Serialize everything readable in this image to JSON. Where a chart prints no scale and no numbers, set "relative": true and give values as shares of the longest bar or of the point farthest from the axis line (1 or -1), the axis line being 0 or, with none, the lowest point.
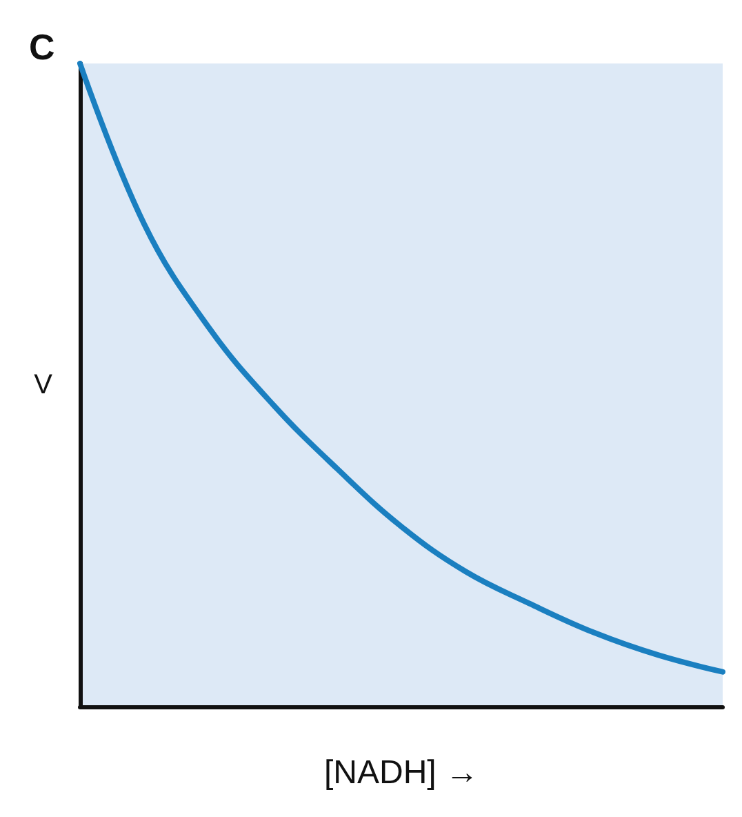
{
  "chart_data": {
    "type": "line",
    "title": "C",
    "xlabel": "[NADH] →",
    "ylabel": "V",
    "relative": true,
    "categories": [
      null,
      null,
      null,
      null,
      null,
      null,
      null,
      null,
      null,
      null,
      null
    ],
    "series": [
      {
        "color": "#1a7fc0",
        "values": [
          1,
          0.75,
          0.59,
          0.47,
          0.37,
          0.28,
          0.21,
          0.16,
          0.115,
          0.08,
          0.054
        ]
      }
    ],
    "grid": false,
    "marker": "none",
    "line_style": "solid"
  }
}
